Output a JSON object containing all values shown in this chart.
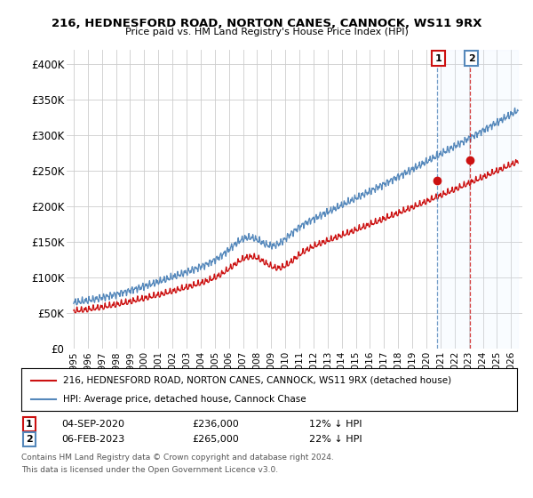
{
  "title": "216, HEDNESFORD ROAD, NORTON CANES, CANNOCK, WS11 9RX",
  "subtitle": "Price paid vs. HM Land Registry's House Price Index (HPI)",
  "ylim": [
    0,
    420000
  ],
  "yticks": [
    0,
    50000,
    100000,
    150000,
    200000,
    250000,
    300000,
    350000,
    400000
  ],
  "ytick_labels": [
    "£0",
    "£50K",
    "£100K",
    "£150K",
    "£200K",
    "£250K",
    "£300K",
    "£350K",
    "£400K"
  ],
  "hpi_color": "#5588bb",
  "price_color": "#cc1111",
  "background_color": "#ffffff",
  "grid_color": "#cccccc",
  "shade_color": "#ddeeff",
  "legend_label_price": "216, HEDNESFORD ROAD, NORTON CANES, CANNOCK, WS11 9RX (detached house)",
  "legend_label_hpi": "HPI: Average price, detached house, Cannock Chase",
  "note1_date": "04-SEP-2020",
  "note1_price": "£236,000",
  "note1_hpi": "12% ↓ HPI",
  "note2_date": "06-FEB-2023",
  "note2_price": "£265,000",
  "note2_hpi": "22% ↓ HPI",
  "footnote": "Contains HM Land Registry data © Crown copyright and database right 2024.\nThis data is licensed under the Open Government Licence v3.0.",
  "sale1_year": 2020.75,
  "sale1_price": 236000,
  "sale2_year": 2023.09,
  "sale2_price": 265000
}
